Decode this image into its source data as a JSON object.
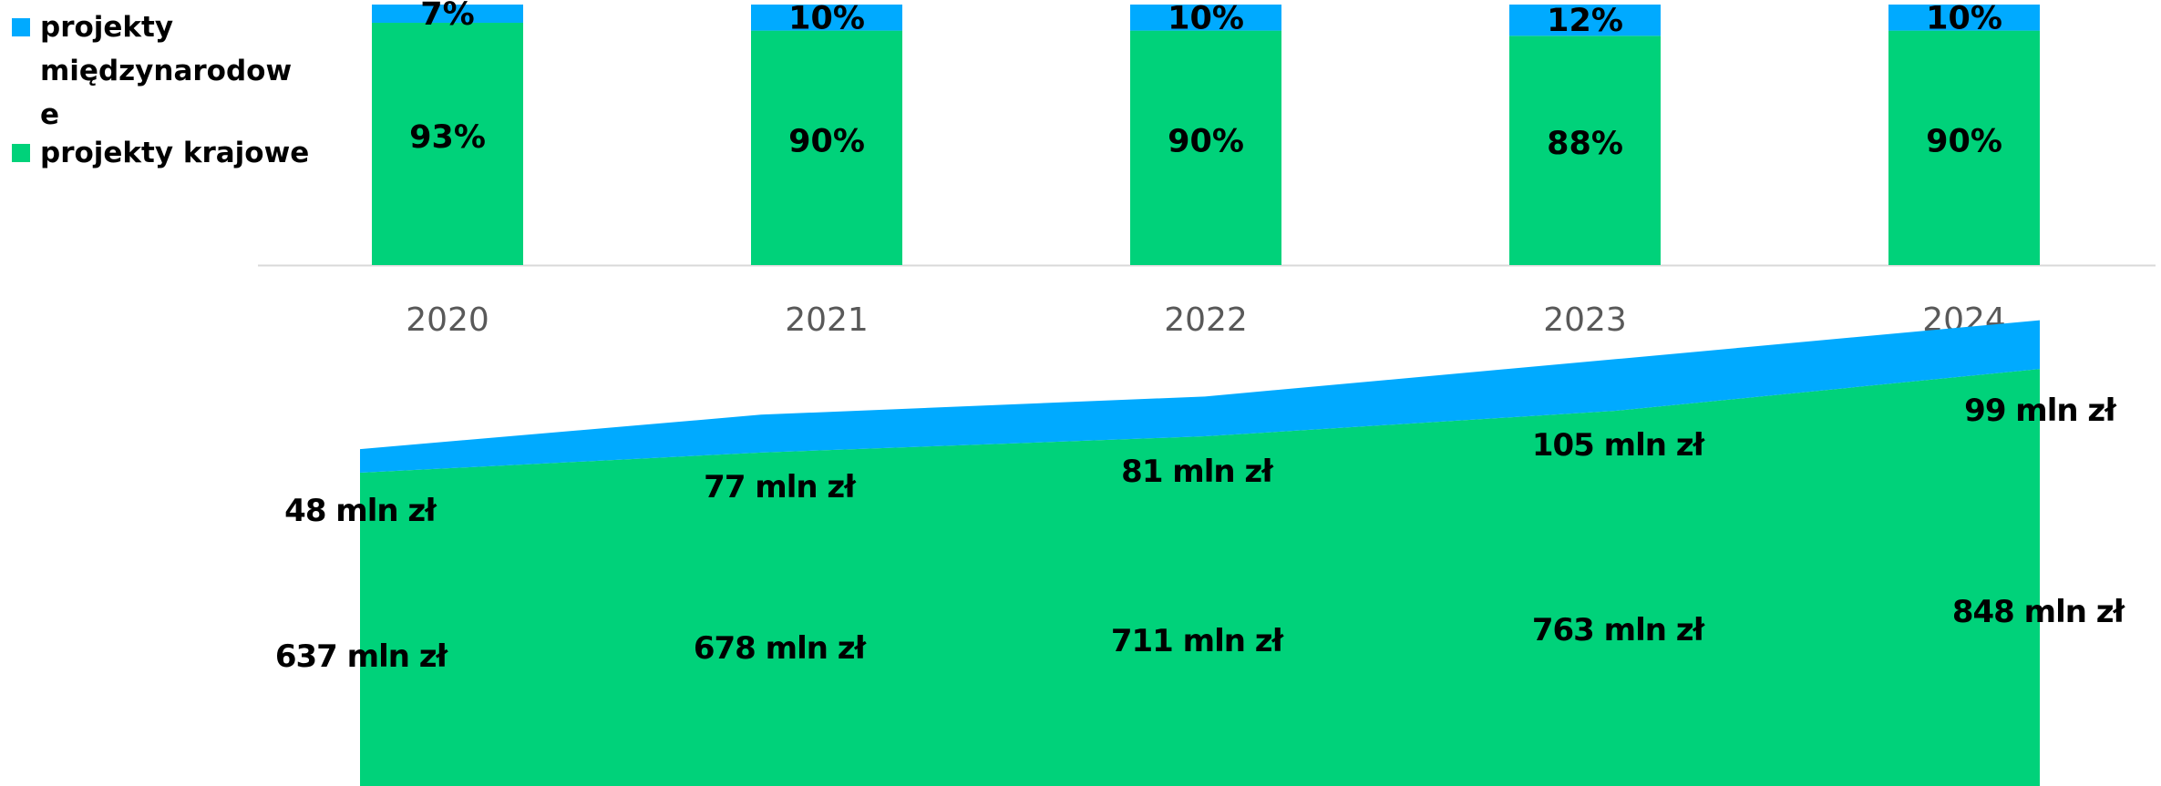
{
  "colors": {
    "international": "#00aaff",
    "domestic": "#00d27a",
    "axis": "#d9d9d9",
    "year_text": "#595959"
  },
  "legend": {
    "international_lines": [
      "projekty",
      "międzynarodow",
      "e"
    ],
    "domestic": "projekty krajowe"
  },
  "chart_data": [
    {
      "type": "bar",
      "stacked": true,
      "percent": true,
      "categories": [
        "2020",
        "2021",
        "2022",
        "2023",
        "2024"
      ],
      "series": [
        {
          "name": "projekty krajowe",
          "values": [
            93,
            90,
            90,
            88,
            90
          ],
          "labels": [
            "93%",
            "90%",
            "90%",
            "88%",
            "90%"
          ]
        },
        {
          "name": "projekty międzynarodowe",
          "values": [
            7,
            10,
            10,
            12,
            10
          ],
          "labels": [
            "7%",
            "10%",
            "10%",
            "12%",
            "10%"
          ]
        }
      ],
      "legend_position": "top-left",
      "grid": false
    },
    {
      "type": "area",
      "stacked": true,
      "x": [
        "2020",
        "2021",
        "2022",
        "2023",
        "2024"
      ],
      "series": [
        {
          "name": "projekty krajowe",
          "values": [
            637,
            678,
            711,
            763,
            848
          ],
          "labels": [
            "637 mln zł",
            "678 mln zł",
            "711 mln zł",
            "763 mln zł",
            "848 mln zł"
          ]
        },
        {
          "name": "projekty międzynarodowe",
          "values": [
            48,
            77,
            81,
            105,
            99
          ],
          "labels": [
            "48 mln zł",
            "77 mln zł",
            "81 mln zł",
            "105 mln zł",
            "99 mln zł"
          ]
        }
      ],
      "grid": false
    }
  ]
}
